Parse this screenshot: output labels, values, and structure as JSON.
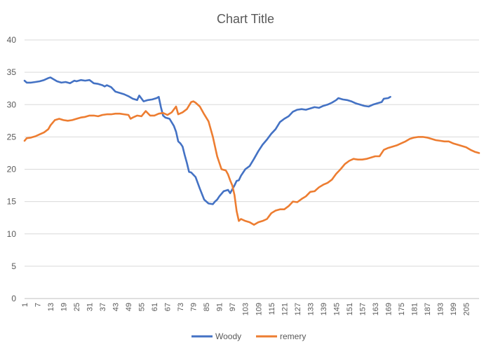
{
  "chart_data": {
    "type": "line",
    "title": "Chart Title",
    "xlabel": "",
    "ylabel": "",
    "ylim": [
      0,
      40
    ],
    "yticks": [
      0,
      5,
      10,
      15,
      20,
      25,
      30,
      35,
      40
    ],
    "xlim": [
      1,
      211
    ],
    "xticks": [
      1,
      7,
      13,
      19,
      25,
      31,
      37,
      43,
      49,
      55,
      61,
      67,
      73,
      79,
      85,
      91,
      97,
      103,
      109,
      115,
      121,
      127,
      133,
      139,
      145,
      151,
      157,
      163,
      169,
      175,
      181,
      187,
      193,
      199,
      205
    ],
    "grid": true,
    "legend": "bottom",
    "series": [
      {
        "name": "Woody",
        "color": "#4472c4",
        "points": [
          [
            1,
            33.7
          ],
          [
            2,
            33.4
          ],
          [
            4,
            33.4
          ],
          [
            6,
            33.5
          ],
          [
            8,
            33.6
          ],
          [
            10,
            33.8
          ],
          [
            12,
            34.1
          ],
          [
            13,
            34.2
          ],
          [
            14,
            34.0
          ],
          [
            16,
            33.6
          ],
          [
            18,
            33.4
          ],
          [
            20,
            33.5
          ],
          [
            22,
            33.3
          ],
          [
            24,
            33.7
          ],
          [
            25,
            33.6
          ],
          [
            27,
            33.8
          ],
          [
            29,
            33.7
          ],
          [
            31,
            33.8
          ],
          [
            33,
            33.3
          ],
          [
            35,
            33.2
          ],
          [
            37,
            33.0
          ],
          [
            38,
            32.8
          ],
          [
            39,
            33.0
          ],
          [
            41,
            32.7
          ],
          [
            43,
            32.0
          ],
          [
            45,
            31.8
          ],
          [
            47,
            31.6
          ],
          [
            49,
            31.3
          ],
          [
            51,
            30.9
          ],
          [
            53,
            30.7
          ],
          [
            54,
            31.4
          ],
          [
            56,
            30.5
          ],
          [
            58,
            30.7
          ],
          [
            60,
            30.8
          ],
          [
            62,
            31.0
          ],
          [
            63,
            31.2
          ],
          [
            64,
            29.6
          ],
          [
            65,
            28.3
          ],
          [
            66,
            28.0
          ],
          [
            68,
            27.8
          ],
          [
            70,
            26.7
          ],
          [
            71,
            25.8
          ],
          [
            72,
            24.3
          ],
          [
            73,
            24.0
          ],
          [
            74,
            23.5
          ],
          [
            75,
            22.2
          ],
          [
            76,
            21.0
          ],
          [
            77,
            19.6
          ],
          [
            78,
            19.5
          ],
          [
            80,
            18.8
          ],
          [
            82,
            17.0
          ],
          [
            84,
            15.3
          ],
          [
            85,
            15.0
          ],
          [
            86,
            14.7
          ],
          [
            88,
            14.6
          ],
          [
            89,
            15.0
          ],
          [
            90,
            15.3
          ],
          [
            91,
            15.8
          ],
          [
            93,
            16.6
          ],
          [
            95,
            16.8
          ],
          [
            96,
            16.3
          ],
          [
            97,
            16.9
          ],
          [
            98,
            17.5
          ],
          [
            99,
            18.2
          ],
          [
            100,
            18.3
          ],
          [
            101,
            19.0
          ],
          [
            103,
            20.0
          ],
          [
            105,
            20.5
          ],
          [
            107,
            21.6
          ],
          [
            109,
            22.8
          ],
          [
            111,
            23.8
          ],
          [
            113,
            24.6
          ],
          [
            115,
            25.5
          ],
          [
            117,
            26.2
          ],
          [
            119,
            27.3
          ],
          [
            121,
            27.8
          ],
          [
            123,
            28.2
          ],
          [
            125,
            28.9
          ],
          [
            127,
            29.2
          ],
          [
            129,
            29.3
          ],
          [
            131,
            29.2
          ],
          [
            133,
            29.4
          ],
          [
            135,
            29.6
          ],
          [
            137,
            29.5
          ],
          [
            139,
            29.8
          ],
          [
            141,
            30.0
          ],
          [
            143,
            30.3
          ],
          [
            145,
            30.7
          ],
          [
            146,
            31.0
          ],
          [
            148,
            30.8
          ],
          [
            150,
            30.7
          ],
          [
            152,
            30.5
          ],
          [
            154,
            30.2
          ],
          [
            156,
            30.0
          ],
          [
            158,
            29.8
          ],
          [
            160,
            29.7
          ],
          [
            162,
            30.0
          ],
          [
            164,
            30.2
          ],
          [
            166,
            30.4
          ],
          [
            167,
            30.9
          ],
          [
            169,
            31.0
          ],
          [
            170,
            31.2
          ]
        ]
      },
      {
        "name": "remery",
        "color": "#ed7d31",
        "points": [
          [
            1,
            24.4
          ],
          [
            2,
            24.8
          ],
          [
            4,
            24.9
          ],
          [
            6,
            25.1
          ],
          [
            8,
            25.4
          ],
          [
            10,
            25.7
          ],
          [
            12,
            26.2
          ],
          [
            13,
            26.8
          ],
          [
            15,
            27.6
          ],
          [
            17,
            27.8
          ],
          [
            19,
            27.6
          ],
          [
            21,
            27.5
          ],
          [
            23,
            27.6
          ],
          [
            25,
            27.8
          ],
          [
            27,
            28.0
          ],
          [
            29,
            28.1
          ],
          [
            31,
            28.3
          ],
          [
            33,
            28.3
          ],
          [
            35,
            28.2
          ],
          [
            37,
            28.4
          ],
          [
            39,
            28.5
          ],
          [
            41,
            28.5
          ],
          [
            43,
            28.6
          ],
          [
            45,
            28.6
          ],
          [
            47,
            28.5
          ],
          [
            49,
            28.4
          ],
          [
            50,
            27.8
          ],
          [
            51,
            28.0
          ],
          [
            53,
            28.3
          ],
          [
            55,
            28.2
          ],
          [
            57,
            29.0
          ],
          [
            59,
            28.3
          ],
          [
            61,
            28.3
          ],
          [
            63,
            28.6
          ],
          [
            65,
            28.7
          ],
          [
            67,
            28.4
          ],
          [
            69,
            28.8
          ],
          [
            71,
            29.7
          ],
          [
            72,
            28.5
          ],
          [
            74,
            28.8
          ],
          [
            76,
            29.3
          ],
          [
            78,
            30.4
          ],
          [
            79,
            30.5
          ],
          [
            80,
            30.3
          ],
          [
            82,
            29.7
          ],
          [
            84,
            28.5
          ],
          [
            86,
            27.4
          ],
          [
            88,
            25.0
          ],
          [
            90,
            22.0
          ],
          [
            92,
            20.0
          ],
          [
            94,
            19.8
          ],
          [
            95,
            19.2
          ],
          [
            96,
            18.3
          ],
          [
            97,
            17.5
          ],
          [
            98,
            16.0
          ],
          [
            99,
            13.5
          ],
          [
            100,
            12.0
          ],
          [
            101,
            12.3
          ],
          [
            103,
            12.0
          ],
          [
            105,
            11.8
          ],
          [
            107,
            11.4
          ],
          [
            109,
            11.8
          ],
          [
            111,
            12.0
          ],
          [
            113,
            12.3
          ],
          [
            115,
            13.2
          ],
          [
            117,
            13.6
          ],
          [
            119,
            13.8
          ],
          [
            121,
            13.8
          ],
          [
            123,
            14.3
          ],
          [
            125,
            15.0
          ],
          [
            127,
            14.9
          ],
          [
            129,
            15.4
          ],
          [
            131,
            15.8
          ],
          [
            133,
            16.5
          ],
          [
            135,
            16.6
          ],
          [
            137,
            17.2
          ],
          [
            139,
            17.6
          ],
          [
            141,
            17.9
          ],
          [
            143,
            18.4
          ],
          [
            145,
            19.3
          ],
          [
            147,
            20.0
          ],
          [
            149,
            20.8
          ],
          [
            151,
            21.3
          ],
          [
            153,
            21.6
          ],
          [
            155,
            21.5
          ],
          [
            157,
            21.5
          ],
          [
            159,
            21.6
          ],
          [
            161,
            21.8
          ],
          [
            163,
            22.0
          ],
          [
            165,
            22.0
          ],
          [
            167,
            23.0
          ],
          [
            169,
            23.3
          ],
          [
            171,
            23.5
          ],
          [
            173,
            23.7
          ],
          [
            175,
            24.0
          ],
          [
            177,
            24.3
          ],
          [
            179,
            24.7
          ],
          [
            181,
            24.9
          ],
          [
            183,
            25.0
          ],
          [
            185,
            25.0
          ],
          [
            187,
            24.9
          ],
          [
            189,
            24.7
          ],
          [
            191,
            24.5
          ],
          [
            193,
            24.4
          ],
          [
            195,
            24.3
          ],
          [
            197,
            24.3
          ],
          [
            199,
            24.0
          ],
          [
            201,
            23.8
          ],
          [
            203,
            23.6
          ],
          [
            205,
            23.4
          ],
          [
            207,
            23.0
          ],
          [
            209,
            22.7
          ],
          [
            211,
            22.5
          ]
        ]
      }
    ]
  }
}
